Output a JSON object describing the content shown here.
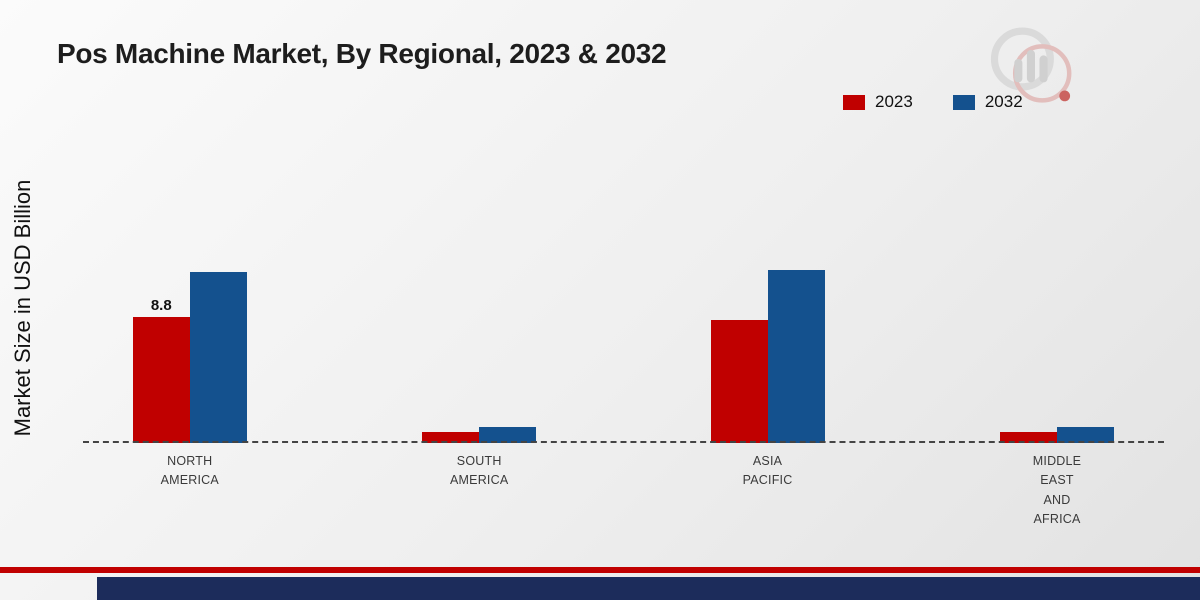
{
  "header": {
    "title": "Pos Machine Market, By Regional, 2023 & 2032"
  },
  "legend": {
    "items": [
      {
        "label": "2023",
        "color": "#c00000"
      },
      {
        "label": "2032",
        "color": "#14518e"
      }
    ]
  },
  "chart_data": {
    "type": "bar",
    "title": "Pos Machine Market, By Regional, 2023 & 2032",
    "categories": [
      "NORTH AMERICA",
      "SOUTH AMERICA",
      "ASIA PACIFIC",
      "MIDDLE EAST AND AFRICA"
    ],
    "series": [
      {
        "name": "2023",
        "color": "#c00000",
        "values": [
          8.8,
          0.8,
          8.6,
          0.75
        ]
      },
      {
        "name": "2032",
        "color": "#14518e",
        "values": [
          12.0,
          1.1,
          12.1,
          1.15
        ]
      }
    ],
    "xlabel": "",
    "ylabel": "Market Size in USD Billion",
    "ylim": [
      0,
      14
    ],
    "grid": false,
    "baseline_style": "dashed",
    "legend_position": "top-right",
    "value_labels": [
      {
        "series": "2023",
        "category": "NORTH AMERICA",
        "text": "8.8"
      }
    ]
  },
  "branding": {
    "logo_name": "market-research-future-logo"
  },
  "footer": {
    "accent_color": "#c00000",
    "bar_color": "#1c2c5b"
  }
}
